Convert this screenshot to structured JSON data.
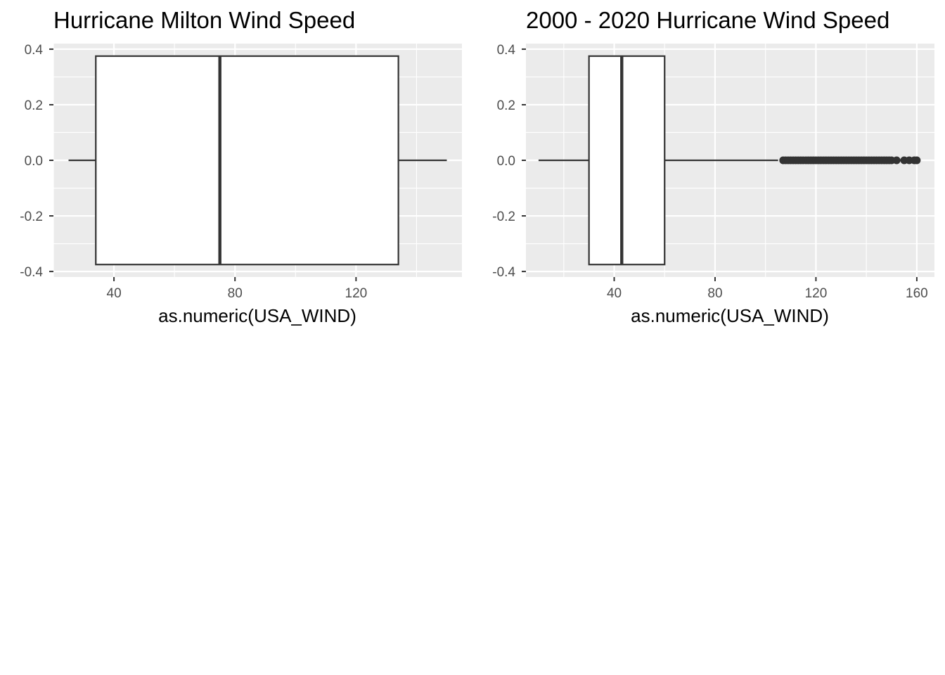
{
  "colors": {
    "panel_background": "#ebebeb",
    "grid_major": "#ffffff",
    "box_fill": "#ffffff",
    "box_line": "#333333",
    "tick_text": "#4d4d4d"
  },
  "chart_data": [
    {
      "type": "boxplot",
      "orientation": "horizontal",
      "title": "Hurricane Milton Wind Speed",
      "xlabel": "as.numeric(USA_WIND)",
      "ylabel": "",
      "xlim": [
        20,
        155
      ],
      "ylim": [
        -0.42,
        0.42
      ],
      "x_ticks": [
        40,
        80,
        120
      ],
      "x_tick_labels": [
        "40",
        "80",
        "120"
      ],
      "y_ticks": [
        0.4,
        0.2,
        0.0,
        -0.2,
        -0.4
      ],
      "y_tick_labels": [
        "0.4",
        "0.2",
        "0.0",
        "-0.2",
        "-0.4"
      ],
      "grid": true,
      "box": {
        "whisker_low": 25,
        "q1": 34,
        "median": 75,
        "q3": 134,
        "whisker_high": 150,
        "y_low": -0.375,
        "y_high": 0.375
      },
      "outliers": []
    },
    {
      "type": "boxplot",
      "orientation": "horizontal",
      "title": "2000 - 2020 Hurricane Wind Speed",
      "xlabel": "as.numeric(USA_WIND)",
      "ylabel": "",
      "xlim": [
        5,
        167
      ],
      "ylim": [
        -0.42,
        0.42
      ],
      "x_ticks": [
        40,
        80,
        120,
        160
      ],
      "x_tick_labels": [
        "40",
        "80",
        "120",
        "160"
      ],
      "y_ticks": [
        0.4,
        0.2,
        0.0,
        -0.2,
        -0.4
      ],
      "y_tick_labels": [
        "0.4",
        "0.2",
        "0.0",
        "-0.2",
        "-0.4"
      ],
      "grid": true,
      "box": {
        "whisker_low": 10,
        "q1": 30,
        "median": 43,
        "q3": 60,
        "whisker_high": 105,
        "y_low": -0.375,
        "y_high": 0.375
      },
      "outliers": [
        107,
        108,
        109,
        110,
        111,
        112,
        113,
        114,
        115,
        116,
        117,
        118,
        119,
        120,
        121,
        122,
        123,
        124,
        125,
        126,
        127,
        128,
        129,
        130,
        131,
        132,
        133,
        134,
        135,
        136,
        137,
        138,
        139,
        140,
        141,
        142,
        143,
        144,
        145,
        146,
        147,
        148,
        149,
        150,
        152,
        155,
        157,
        159,
        160
      ]
    }
  ]
}
